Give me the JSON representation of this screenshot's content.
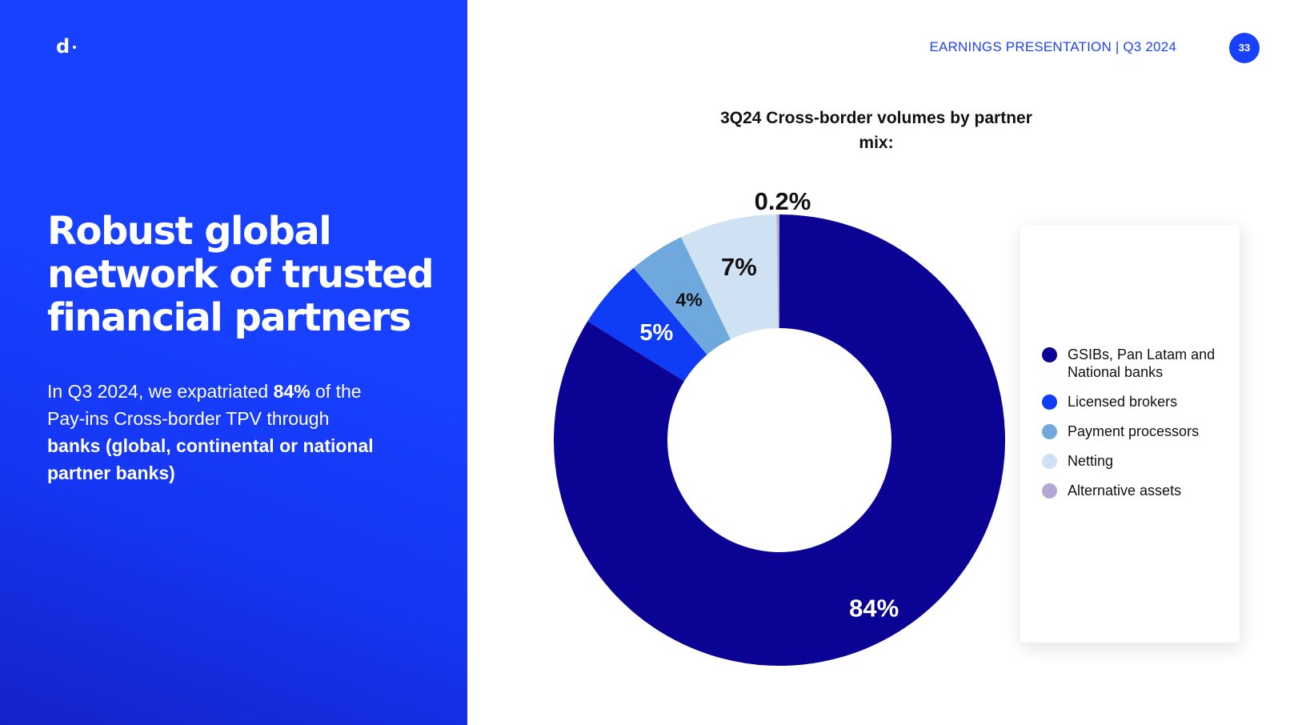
{
  "brand": {
    "logo_text": "d"
  },
  "header": {
    "text": "EARNINGS PRESENTATION | Q3 2024",
    "page_number": "33"
  },
  "left": {
    "headline": "Robust global network of trusted financial partners",
    "body": {
      "p1": "In Q3 2024",
      "p2": ", we expatriated ",
      "p3": "84%",
      "p4": " of the Pay-ins Cross-border TPV through ",
      "p5": "banks (global, continental or national partner banks)"
    }
  },
  "colors": {
    "left_panel": "#1740ff",
    "accent": "#1e43f0",
    "dark_navy": "#0b0394",
    "royal_blue": "#0f3cf5",
    "light_blue": "#6fa8dc",
    "pale_blue": "#cfe2f3",
    "lavender": "#b4a7d6"
  },
  "chart_data": {
    "type": "pie",
    "title": "3Q24 Cross-border volumes by partner mix:",
    "slices": [
      {
        "name": "GSIBs, Pan Latam and National banks",
        "value": 84,
        "label": "84%",
        "color": "#0b0394"
      },
      {
        "name": "Licensed brokers",
        "value": 5,
        "label": "5%",
        "color": "#0f3cf5"
      },
      {
        "name": "Payment processors",
        "value": 4,
        "label": "4%",
        "color": "#6fa8dc"
      },
      {
        "name": "Netting",
        "value": 7,
        "label": "7%",
        "color": "#cfe2f3"
      },
      {
        "name": "Alternative assets",
        "value": 0.2,
        "label": "0.2%",
        "color": "#b4a7d6"
      }
    ],
    "legend_placement": "right"
  }
}
